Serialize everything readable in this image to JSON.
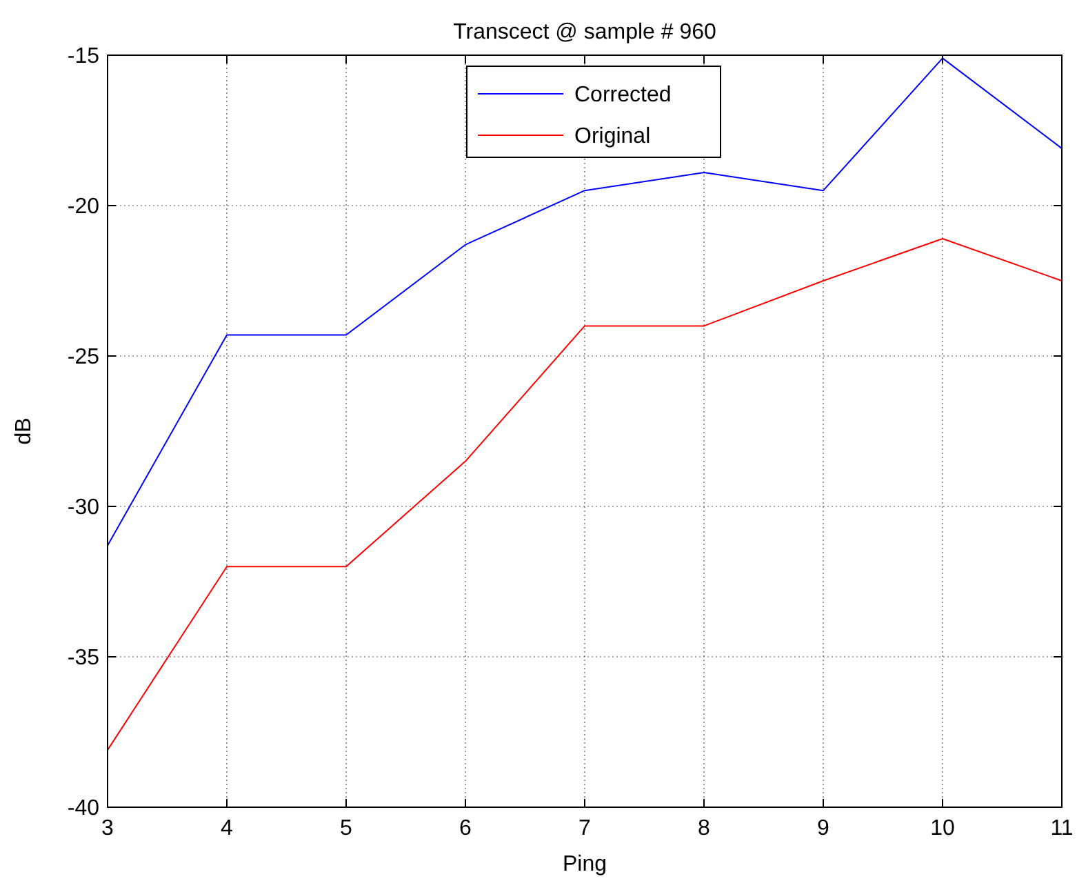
{
  "chart_data": {
    "type": "line",
    "title": "Transcect @ sample # 960",
    "xlabel": "Ping",
    "ylabel": "dB",
    "x": [
      3,
      4,
      5,
      6,
      7,
      8,
      9,
      10,
      11
    ],
    "series": [
      {
        "name": "Corrected",
        "color": "#0000ff",
        "values": [
          -31.3,
          -24.3,
          -24.3,
          -21.3,
          -19.5,
          -18.9,
          -19.5,
          -15.1,
          -18.1
        ]
      },
      {
        "name": "Original",
        "color": "#ff0000",
        "values": [
          -38.1,
          -32,
          -32,
          -28.5,
          -24,
          -24,
          -22.5,
          -21.1,
          -22.5
        ]
      }
    ],
    "xlim": [
      3,
      11
    ],
    "xticks": [
      3,
      4,
      5,
      6,
      7,
      8,
      9,
      10,
      11
    ],
    "ylim": [
      -40,
      -15
    ],
    "yticks": [
      -40,
      -35,
      -30,
      -25,
      -20,
      -15
    ],
    "grid": true,
    "legend": "top",
    "marker": "none",
    "line_style": "solid"
  }
}
